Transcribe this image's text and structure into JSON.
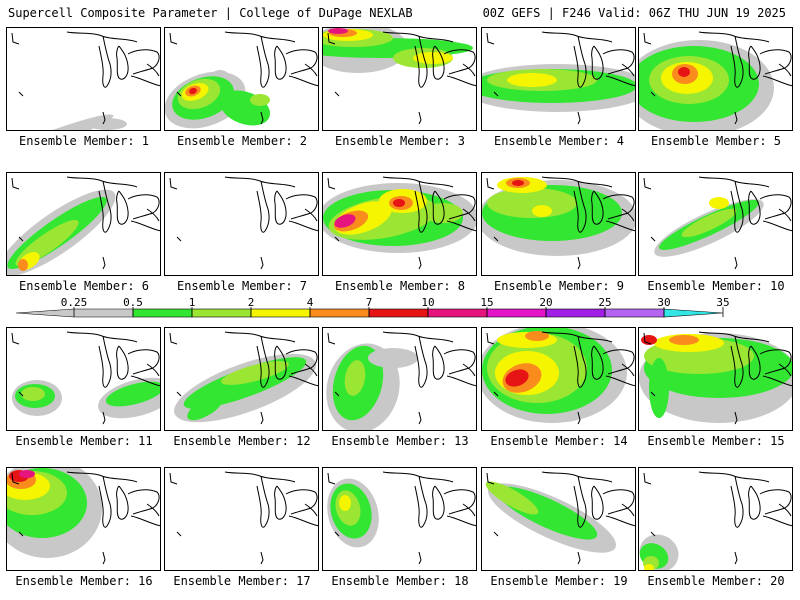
{
  "header": {
    "title": "Supercell Composite Parameter | College of DuPage NEXLAB",
    "run_info": "00Z GEFS | F246 Valid: 06Z THU JUN 19 2025"
  },
  "colorbar": {
    "ticks": [
      "0.25",
      "0.5",
      "1",
      "2",
      "4",
      "7",
      "10",
      "15",
      "20",
      "25",
      "30",
      "35"
    ],
    "colors": [
      "#c8c8c8",
      "#32e632",
      "#9be632",
      "#f5f500",
      "#fa8c1e",
      "#e61414",
      "#e6147d",
      "#e614c8",
      "#a01ee6",
      "#b464f0",
      "#32e6e6"
    ]
  },
  "panels": [
    {
      "label": "Ensemble Member: 1"
    },
    {
      "label": "Ensemble Member: 2"
    },
    {
      "label": "Ensemble Member: 3"
    },
    {
      "label": "Ensemble Member: 4"
    },
    {
      "label": "Ensemble Member: 5"
    },
    {
      "label": "Ensemble Member: 6"
    },
    {
      "label": "Ensemble Member: 7"
    },
    {
      "label": "Ensemble Member: 8"
    },
    {
      "label": "Ensemble Member: 9"
    },
    {
      "label": "Ensemble Member: 10"
    },
    {
      "label": "Ensemble Member: 11"
    },
    {
      "label": "Ensemble Member: 12"
    },
    {
      "label": "Ensemble Member: 13"
    },
    {
      "label": "Ensemble Member: 14"
    },
    {
      "label": "Ensemble Member: 15"
    },
    {
      "label": "Ensemble Member: 16"
    },
    {
      "label": "Ensemble Member: 17"
    },
    {
      "label": "Ensemble Member: 18"
    },
    {
      "label": "Ensemble Member: 19"
    },
    {
      "label": "Ensemble Member: 20"
    }
  ]
}
